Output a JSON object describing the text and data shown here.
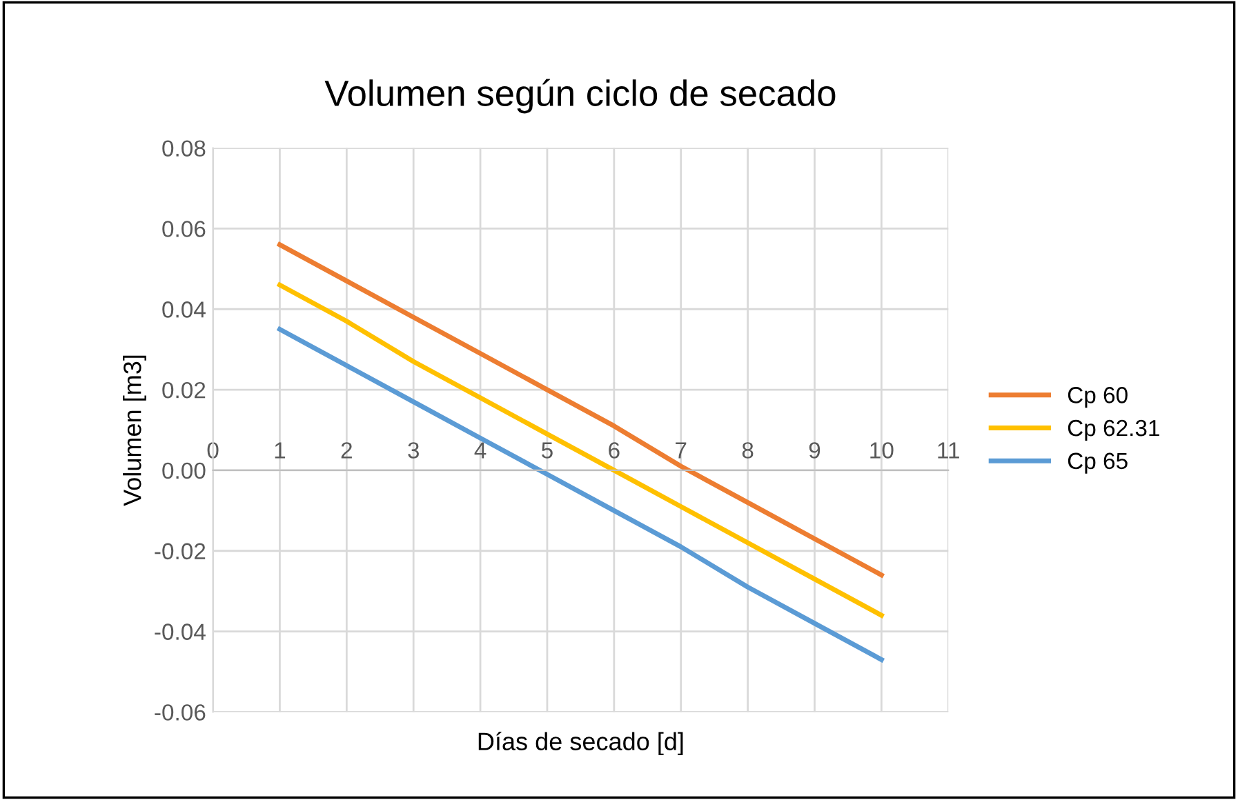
{
  "chart_data": {
    "type": "line",
    "title": "Volumen según ciclo de secado",
    "xlabel": "Días de secado [d]",
    "ylabel": "Volumen [m3]",
    "x": [
      1,
      2,
      3,
      4,
      5,
      6,
      7,
      8,
      9,
      10
    ],
    "series": [
      {
        "name": "Cp 60",
        "color": "#ed7d31",
        "values": [
          0.056,
          0.047,
          0.038,
          0.029,
          0.02,
          0.011,
          0.001,
          -0.008,
          -0.017,
          -0.026
        ]
      },
      {
        "name": "Cp 62.31",
        "color": "#ffc000",
        "values": [
          0.046,
          0.037,
          0.027,
          0.018,
          0.009,
          0.0,
          -0.009,
          -0.018,
          -0.027,
          -0.036
        ]
      },
      {
        "name": "Cp 65",
        "color": "#5b9bd5",
        "values": [
          0.035,
          0.026,
          0.017,
          0.008,
          -0.001,
          -0.01,
          -0.019,
          -0.029,
          -0.038,
          -0.047
        ]
      }
    ],
    "xlim": [
      0,
      11
    ],
    "xticks": [
      0,
      1,
      2,
      3,
      4,
      5,
      6,
      7,
      8,
      9,
      10,
      11
    ],
    "ylim": [
      -0.06,
      0.08
    ],
    "yticks": [
      {
        "value": -0.06,
        "label": "-0.06"
      },
      {
        "value": -0.04,
        "label": "-0.04"
      },
      {
        "value": -0.02,
        "label": "-0.02"
      },
      {
        "value": 0,
        "label": "0.00"
      },
      {
        "value": 0.02,
        "label": "0.02"
      },
      {
        "value": 0.04,
        "label": "0.04"
      },
      {
        "value": 0.06,
        "label": "0.06"
      },
      {
        "value": 0.08,
        "label": "0.08"
      }
    ],
    "grid": true,
    "legend": "right",
    "marker": "none",
    "line_style": "solid"
  }
}
